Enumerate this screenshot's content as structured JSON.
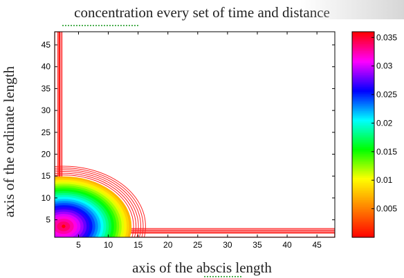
{
  "chart_data": {
    "type": "contour",
    "title": "concentration every set of time and distance",
    "xlabel": "axis of the abscis length",
    "ylabel": "axis of the ordinate length",
    "xlim": [
      1,
      48
    ],
    "ylim": [
      1,
      48
    ],
    "xticks": [
      5,
      10,
      15,
      20,
      25,
      30,
      35,
      40,
      45
    ],
    "yticks": [
      5,
      10,
      15,
      20,
      25,
      30,
      35,
      40,
      45
    ],
    "source": {
      "x": 2.5,
      "y": 3.5,
      "peak": 0.035
    },
    "spread_radius": 13.5,
    "boundary_band_y": [
      1,
      2
    ],
    "boundary_band_x": [
      1,
      1.5
    ],
    "colorbar": {
      "min": 0,
      "max": 0.036,
      "ticks": [
        0.005,
        0.01,
        0.015,
        0.02,
        0.025,
        0.03,
        0.035
      ],
      "tick_labels": [
        "0.005",
        "0.01",
        "0.015",
        "0.02",
        "0.025",
        "0.03",
        "0.035"
      ],
      "colormap": [
        "#ff0000",
        "#ff8000",
        "#ffff00",
        "#00ff00",
        "#00ffff",
        "#0000ff",
        "#ff00ff",
        "#ff0000"
      ]
    }
  }
}
